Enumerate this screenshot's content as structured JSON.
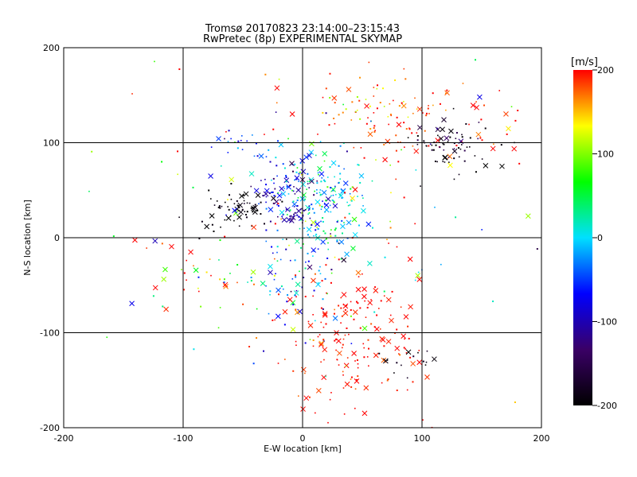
{
  "chart_data": {
    "type": "scatter",
    "title": "Tromsø 20170823 23:14:00–23:15:43",
    "subtitle": "RwPretec (8p) EXPERIMENTAL SKYMAP",
    "xlabel": "E-W location [km]",
    "ylabel": "N-S location [km]",
    "xlim": [
      -200,
      200
    ],
    "ylim": [
      -200,
      200
    ],
    "x_ticks": [
      -200,
      -100,
      0,
      100,
      200
    ],
    "y_ticks": [
      -200,
      -100,
      0,
      100,
      200
    ],
    "grid": true,
    "colorbar": {
      "unit": "[m/s]",
      "range": [
        -200,
        200
      ],
      "ticks": [
        200,
        100,
        0,
        -100,
        -200
      ],
      "colors": [
        "#000000",
        "#3a0066",
        "#0000ff",
        "#00e0ff",
        "#00ff00",
        "#ffff00",
        "#ff0000"
      ]
    },
    "clusters": [
      {
        "cx": 95,
        "cy": 120,
        "sx": 45,
        "sy": 25,
        "n": 90,
        "v": 190,
        "vs": 25
      },
      {
        "cx": 60,
        "cy": 140,
        "sx": 25,
        "sy": 15,
        "n": 35,
        "v": 170,
        "vs": 30
      },
      {
        "cx": 130,
        "cy": 90,
        "sx": 18,
        "sy": 15,
        "n": 45,
        "v": -195,
        "vs": 10
      },
      {
        "cx": 115,
        "cy": 105,
        "sx": 15,
        "sy": 10,
        "n": 25,
        "v": -150,
        "vs": 30
      },
      {
        "cx": 20,
        "cy": 35,
        "sx": 18,
        "sy": 28,
        "n": 140,
        "v": 10,
        "vs": 45
      },
      {
        "cx": 0,
        "cy": 50,
        "sx": 18,
        "sy": 20,
        "n": 60,
        "v": -40,
        "vs": 40
      },
      {
        "cx": -20,
        "cy": 55,
        "sx": 20,
        "sy": 20,
        "n": 40,
        "v": -110,
        "vs": 30
      },
      {
        "cx": -8,
        "cy": 25,
        "sx": 6,
        "sy": 6,
        "n": 25,
        "v": -110,
        "vs": 15
      },
      {
        "cx": -55,
        "cy": 30,
        "sx": 12,
        "sy": 10,
        "n": 60,
        "v": -195,
        "vs": 10
      },
      {
        "cx": -45,
        "cy": 95,
        "sx": 15,
        "sy": 8,
        "n": 20,
        "v": -70,
        "vs": 30
      },
      {
        "cx": -10,
        "cy": -35,
        "sx": 20,
        "sy": 25,
        "n": 70,
        "v": -30,
        "vs": 60
      },
      {
        "cx": 40,
        "cy": -105,
        "sx": 30,
        "sy": 40,
        "n": 180,
        "v": 195,
        "vs": 12
      },
      {
        "cx": 90,
        "cy": -130,
        "sx": 12,
        "sy": 10,
        "n": 15,
        "v": -190,
        "vs": 15
      },
      {
        "cx": -80,
        "cy": -45,
        "sx": 30,
        "sy": 20,
        "n": 30,
        "v": 150,
        "vs": 80
      },
      {
        "cx": 0,
        "cy": 0,
        "sx": 95,
        "sy": 95,
        "n": 140,
        "v": 100,
        "vs": 120
      }
    ]
  }
}
